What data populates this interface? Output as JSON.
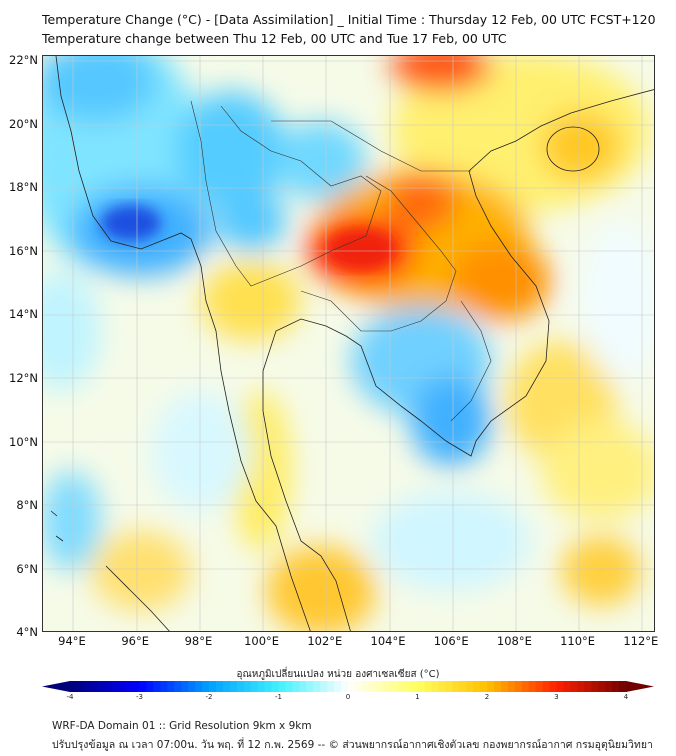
{
  "header": {
    "title_line1": "Temperature Change (°C) - [Data Assimilation] _ Initial Time : Thursday 12 Feb, 00 UTC FCST+120",
    "title_line2": "Temperature change between Thu 12 Feb, 00 UTC and Tue 17 Feb, 00 UTC"
  },
  "map": {
    "lat_labels": [
      "22°N",
      "20°N",
      "18°N",
      "16°N",
      "14°N",
      "12°N",
      "10°N",
      "8°N",
      "6°N",
      "4°N"
    ],
    "lon_labels": [
      "94°E",
      "96°E",
      "98°E",
      "100°E",
      "102°E",
      "104°E",
      "106°E",
      "108°E",
      "110°E",
      "112°E"
    ]
  },
  "colorbar": {
    "title": "อุณหภูมิเปลี่ยนแปลง หน่วย องศาเซลเซียส (°C)",
    "ticks": [
      "-4",
      "-3",
      "-2",
      "-1",
      "0",
      "1",
      "2",
      "3",
      "4"
    ],
    "range": [
      -4,
      4
    ],
    "colors": [
      "#00007a",
      "#0000ff",
      "#00a0ff",
      "#40f0ff",
      "#ffffff",
      "#ffff60",
      "#ffc000",
      "#ff2000",
      "#700000"
    ]
  },
  "footer": {
    "line1": "WRF-DA Domain 01 :: Grid Resolution 9km x 9km",
    "line2": "ปรับปรุงข้อมูล ณ เวลา 07:00น. วัน พฤ. ที่ 12 ก.พ. 2569 -- © ส่วนพยากรณ์อากาศเชิงตัวเลข กองพยากรณ์อากาศ กรมอุตุนิยมวิทยา"
  }
}
